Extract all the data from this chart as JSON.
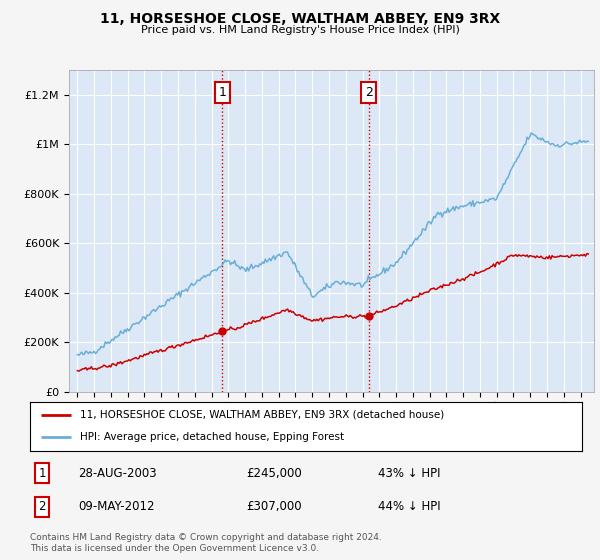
{
  "title": "11, HORSESHOE CLOSE, WALTHAM ABBEY, EN9 3RX",
  "subtitle": "Price paid vs. HM Land Registry's House Price Index (HPI)",
  "legend_line1": "11, HORSESHOE CLOSE, WALTHAM ABBEY, EN9 3RX (detached house)",
  "legend_line2": "HPI: Average price, detached house, Epping Forest",
  "footnote": "Contains HM Land Registry data © Crown copyright and database right 2024.\nThis data is licensed under the Open Government Licence v3.0.",
  "point1_label": "1",
  "point1_date": "28-AUG-2003",
  "point1_price": "£245,000",
  "point1_hpi": "43% ↓ HPI",
  "point1_year": 2003.65,
  "point1_value": 245000,
  "point2_label": "2",
  "point2_date": "09-MAY-2012",
  "point2_price": "£307,000",
  "point2_hpi": "44% ↓ HPI",
  "point2_year": 2012.37,
  "point2_value": 307000,
  "hpi_color": "#6aaed6",
  "price_color": "#cc0000",
  "background_color": "#f5f5f5",
  "plot_bg_color": "#dce8f5",
  "grid_color": "#ffffff",
  "vline_color": "#cc0000",
  "point_color": "#cc0000",
  "ylim": [
    0,
    1300000
  ],
  "yticks": [
    0,
    200000,
    400000,
    600000,
    800000,
    1000000,
    1200000
  ],
  "ytick_labels": [
    "£0",
    "£200K",
    "£400K",
    "£600K",
    "£800K",
    "£1M",
    "£1.2M"
  ],
  "xmin": 1994.5,
  "xmax": 2025.8
}
